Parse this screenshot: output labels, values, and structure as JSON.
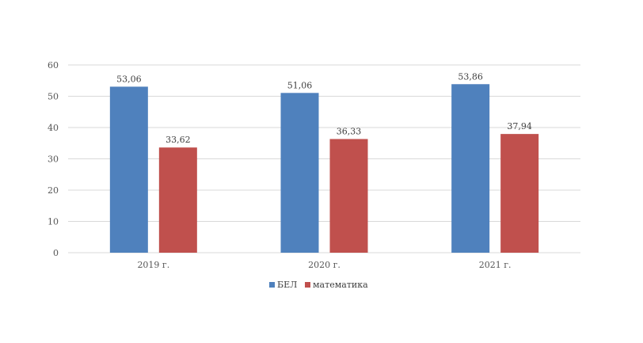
{
  "chart_data": {
    "type": "bar",
    "title": "",
    "xlabel": "",
    "ylabel": "",
    "ylim": [
      0,
      60
    ],
    "yticks": [
      0,
      10,
      20,
      30,
      40,
      50,
      60
    ],
    "grid": true,
    "legend_position": "bottom",
    "categories": [
      "2019 г.",
      "2020 г.",
      "2021 г."
    ],
    "series": [
      {
        "name": "БЕЛ",
        "color": "#4F81BD",
        "values": [
          53.06,
          51.06,
          53.86
        ],
        "labels": [
          "53,06",
          "51,06",
          "53,86"
        ]
      },
      {
        "name": "математика",
        "color": "#C0504D",
        "values": [
          33.62,
          36.33,
          37.94
        ],
        "labels": [
          "33,62",
          "36,33",
          "37,94"
        ]
      }
    ]
  }
}
